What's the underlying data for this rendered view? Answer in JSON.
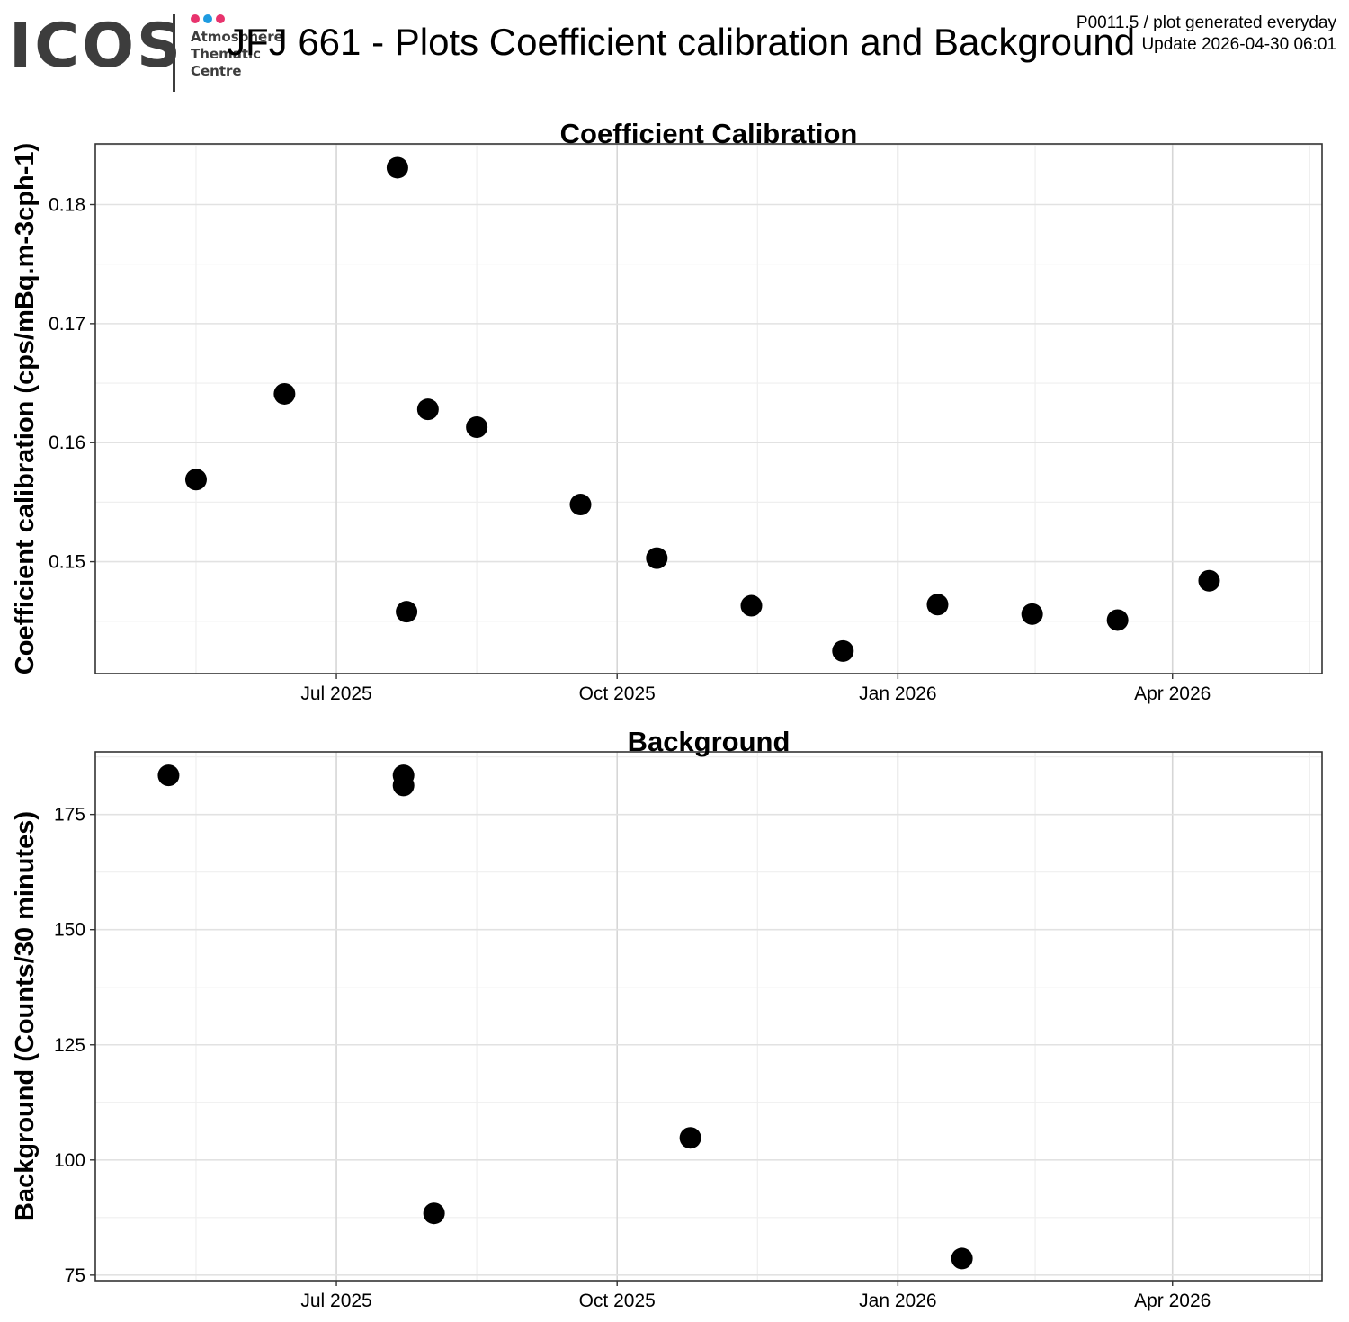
{
  "header": {
    "logo": {
      "wordmark": "ICOS",
      "subtitle_lines": [
        "Atmosphere",
        "Thematic",
        "Centre"
      ],
      "dot_colors": [
        "#e8336d",
        "#1e9be0",
        "#e8336d"
      ]
    },
    "title": "JFJ 661 - Plots Coefficient calibration and Background",
    "info_line_1": "P0011.5 / plot generated everyday",
    "info_line_2": "Update  2026-04-30 06:01"
  },
  "chart_data": [
    {
      "type": "scatter",
      "title": "Coefficient Calibration",
      "xlabel": "",
      "ylabel": "Coefficient calibration (cps/mBq.m-3cph-1)",
      "x_type": "date",
      "xlim": [
        "2025-04-13",
        "2026-05-20"
      ],
      "ylim": [
        0.1406,
        0.1851
      ],
      "x_ticks": [
        {
          "value": "2025-07-01",
          "label": "Jul 2025"
        },
        {
          "value": "2025-10-01",
          "label": "Oct 2025"
        },
        {
          "value": "2026-01-01",
          "label": "Jan 2026"
        },
        {
          "value": "2026-04-01",
          "label": "Apr 2026"
        }
      ],
      "y_ticks": [
        {
          "value": 0.15,
          "label": "0.15"
        },
        {
          "value": 0.16,
          "label": "0.16"
        },
        {
          "value": 0.17,
          "label": "0.17"
        },
        {
          "value": 0.18,
          "label": "0.18"
        }
      ],
      "grid": true,
      "marker_color": "#000000",
      "points": [
        {
          "x": "2025-05-16",
          "y": 0.1569
        },
        {
          "x": "2025-06-14",
          "y": 0.1641
        },
        {
          "x": "2025-07-21",
          "y": 0.1831
        },
        {
          "x": "2025-07-24",
          "y": 0.1458
        },
        {
          "x": "2025-07-31",
          "y": 0.1628
        },
        {
          "x": "2025-08-16",
          "y": 0.1613
        },
        {
          "x": "2025-09-19",
          "y": 0.1548
        },
        {
          "x": "2025-10-14",
          "y": 0.1503
        },
        {
          "x": "2025-11-14",
          "y": 0.1463
        },
        {
          "x": "2025-12-14",
          "y": 0.1425
        },
        {
          "x": "2026-01-14",
          "y": 0.1464
        },
        {
          "x": "2026-02-14",
          "y": 0.1456
        },
        {
          "x": "2026-03-14",
          "y": 0.1451
        },
        {
          "x": "2026-04-13",
          "y": 0.1484
        }
      ]
    },
    {
      "type": "scatter",
      "title": "Background",
      "xlabel": "",
      "ylabel": "Background (Counts/30 minutes)",
      "x_type": "date",
      "xlim": [
        "2025-04-13",
        "2026-05-20"
      ],
      "ylim": [
        73.8,
        188.6
      ],
      "x_ticks": [
        {
          "value": "2025-07-01",
          "label": "Jul 2025"
        },
        {
          "value": "2025-10-01",
          "label": "Oct 2025"
        },
        {
          "value": "2026-01-01",
          "label": "Jan 2026"
        },
        {
          "value": "2026-04-01",
          "label": "Apr 2026"
        }
      ],
      "y_ticks": [
        {
          "value": 75,
          "label": "75"
        },
        {
          "value": 100,
          "label": "100"
        },
        {
          "value": 125,
          "label": "125"
        },
        {
          "value": 150,
          "label": "150"
        },
        {
          "value": 175,
          "label": "175"
        }
      ],
      "grid": true,
      "marker_color": "#000000",
      "points": [
        {
          "x": "2025-05-07",
          "y": 183.5
        },
        {
          "x": "2025-07-23",
          "y": 183.5
        },
        {
          "x": "2025-07-23",
          "y": 181.3
        },
        {
          "x": "2025-08-02",
          "y": 88.4
        },
        {
          "x": "2025-10-25",
          "y": 104.8
        },
        {
          "x": "2026-01-22",
          "y": 78.6
        }
      ]
    }
  ]
}
